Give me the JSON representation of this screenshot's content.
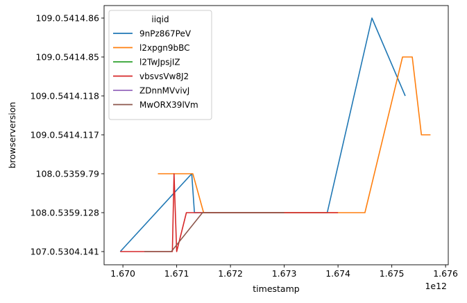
{
  "chart_data": {
    "type": "line",
    "xlabel": "timestamp",
    "ylabel": "browserversion",
    "x_offset_label": "1e12",
    "x_ticks": [
      "1.670",
      "1.671",
      "1.672",
      "1.673",
      "1.674",
      "1.675",
      "1.676"
    ],
    "x_tick_values": [
      1670000000000.0,
      1671000000000.0,
      1672000000000.0,
      1673000000000.0,
      1674000000000.0,
      1675000000000.0,
      1676000000000.0
    ],
    "xlim": [
      1669650000000.0,
      1676050000000.0
    ],
    "y_categories": [
      "107.0.5304.141",
      "108.0.5359.128",
      "108.0.5359.79",
      "109.0.5414.117",
      "109.0.5414.118",
      "109.0.5414.85",
      "109.0.5414.86"
    ],
    "grid": false,
    "legend": {
      "title": "iiqid",
      "placement": "upper-left"
    },
    "series": [
      {
        "name": "9nPz867PeV",
        "color": "#1f77b4",
        "points": [
          [
            1669950000000.0,
            "107.0.5304.141"
          ],
          [
            1671280000000.0,
            "108.0.5359.79"
          ],
          [
            1671330000000.0,
            "108.0.5359.128"
          ],
          [
            1673800000000.0,
            "108.0.5359.128"
          ],
          [
            1674630000000.0,
            "109.0.5414.86"
          ],
          [
            1675250000000.0,
            "109.0.5414.118"
          ]
        ]
      },
      {
        "name": "l2xpgn9bBC",
        "color": "#ff7f0e",
        "points": [
          [
            1670650000000.0,
            "108.0.5359.79"
          ],
          [
            1671300000000.0,
            "108.0.5359.79"
          ],
          [
            1671500000000.0,
            "108.0.5359.128"
          ],
          [
            1674500000000.0,
            "108.0.5359.128"
          ],
          [
            1675200000000.0,
            "109.0.5414.85"
          ],
          [
            1675380000000.0,
            "109.0.5414.85"
          ],
          [
            1675550000000.0,
            "109.0.5414.117"
          ],
          [
            1675720000000.0,
            "109.0.5414.117"
          ]
        ]
      },
      {
        "name": "l2TwJpsjIZ",
        "color": "#2ca02c",
        "points": []
      },
      {
        "name": "vbsvsVw8J2",
        "color": "#d62728",
        "points": [
          [
            1669950000000.0,
            "107.0.5304.141"
          ],
          [
            1670920000000.0,
            "107.0.5304.141"
          ],
          [
            1670950000000.0,
            "108.0.5359.79"
          ],
          [
            1671000000000.0,
            "107.0.5304.141"
          ],
          [
            1671180000000.0,
            "108.0.5359.128"
          ],
          [
            1674000000000.0,
            "108.0.5359.128"
          ]
        ]
      },
      {
        "name": "ZDnnMVvivJ",
        "color": "#9467bd",
        "points": []
      },
      {
        "name": "MwORX39lVm",
        "color": "#8c564b",
        "points": [
          [
            1670400000000.0,
            "107.0.5304.141"
          ],
          [
            1670900000000.0,
            "107.0.5304.141"
          ],
          [
            1671480000000.0,
            "108.0.5359.128"
          ],
          [
            1673000000000.0,
            "108.0.5359.128"
          ]
        ]
      }
    ]
  }
}
